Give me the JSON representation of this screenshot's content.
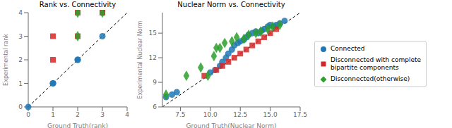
{
  "chart_data": [
    {
      "type": "scatter",
      "title": "Rank vs. Connectivity",
      "x_label": "Ground Truth(rank)",
      "y_label": "Experimental rank",
      "xlim": [
        0,
        4
      ],
      "ylim": [
        0,
        4
      ],
      "xticks": [
        0,
        1,
        2,
        3,
        4
      ],
      "yticks": [
        0,
        1,
        2,
        3,
        4
      ],
      "grid": false,
      "series": [
        {
          "type": "line",
          "line_style": "dashed",
          "color": "#000000",
          "x": [
            0,
            4
          ],
          "values": [
            0,
            4
          ]
        },
        {
          "type": "scatter",
          "name": "Connected",
          "color": "#1f77b4",
          "marker": "circle",
          "x": [
            0,
            1,
            1,
            2,
            2,
            3
          ],
          "values": [
            0,
            1,
            1,
            2,
            2,
            3
          ]
        },
        {
          "type": "scatter",
          "name": "Disconnected with complete\nbipartite components",
          "color": "#d62728",
          "marker": "square",
          "x": [
            1,
            1,
            2,
            2,
            3,
            3
          ],
          "values": [
            2,
            3,
            3,
            4,
            4,
            4
          ]
        },
        {
          "type": "scatter",
          "name": "Disconnected(otherwise)",
          "color": "#2ca02c",
          "marker": "diamond",
          "x": [
            2,
            2,
            3
          ],
          "values": [
            3,
            4,
            4
          ]
        }
      ]
    },
    {
      "type": "scatter",
      "title": "Nuclear Norm vs. Connectivity",
      "x_label": "Ground Truth(Nuclear Norm)",
      "y_label": "Experimental Nuclear Norm",
      "xlim": [
        6,
        17.5
      ],
      "ylim": [
        6,
        17.5
      ],
      "xticks": [
        7.5,
        {
          "value": 10,
          "label": "10.0"
        },
        12.5,
        {
          "value": 15,
          "label": "15.0"
        },
        17.5
      ],
      "yticks": [
        6,
        9,
        12,
        15
      ],
      "grid": false,
      "legend": "right",
      "series": [
        {
          "type": "line",
          "line_style": "dashed",
          "color": "#000000",
          "x": [
            6,
            17.5
          ],
          "values": [
            6,
            17.5
          ]
        },
        {
          "type": "scatter",
          "name": "Connected",
          "color": "#1f77b4",
          "marker": "circle",
          "x": [
            6.3,
            6.8,
            7.2,
            10.0,
            10.4,
            10.8,
            11.0,
            11.3,
            11.5,
            11.8,
            12.0,
            12.3,
            12.5,
            12.8,
            13.0,
            13.2,
            13.5,
            13.8,
            14.0,
            14.3,
            14.5,
            14.8,
            15.0,
            15.3,
            15.5,
            15.8,
            16.2
          ],
          "values": [
            7.2,
            7.5,
            7.8,
            10.2,
            10.5,
            11.0,
            11.5,
            12.0,
            12.5,
            13.0,
            13.5,
            13.8,
            14.0,
            14.2,
            14.5,
            14.8,
            15.0,
            15.2,
            15.0,
            15.3,
            15.5,
            15.8,
            16.0,
            15.8,
            16.0,
            16.2,
            16.5
          ]
        },
        {
          "type": "scatter",
          "name": "Disconnected with complete\nbipartite components",
          "color": "#d62728",
          "marker": "square",
          "x": [
            9.5,
            10.5,
            11.0,
            11.5,
            12.0,
            12.5,
            13.0,
            13.5,
            14.0,
            14.5,
            15.0,
            15.5
          ],
          "values": [
            9.8,
            10.5,
            11.0,
            11.5,
            12.0,
            12.5,
            13.0,
            13.5,
            14.0,
            14.5,
            15.0,
            15.5
          ]
        },
        {
          "type": "scatter",
          "name": "Disconnected(otherwise)",
          "color": "#2ca02c",
          "marker": "diamond",
          "x": [
            6.3,
            8.0,
            9.2,
            9.8,
            10.3,
            10.5,
            10.8,
            11.2,
            11.8,
            12.2,
            12.8,
            13.2,
            13.8,
            14.2,
            14.8,
            15.2,
            15.8
          ],
          "values": [
            7.5,
            9.8,
            10.8,
            9.8,
            12.2,
            13.2,
            13.2,
            13.8,
            14.0,
            14.5,
            14.3,
            14.8,
            15.0,
            15.2,
            15.5,
            15.8,
            16.0
          ]
        }
      ]
    }
  ]
}
